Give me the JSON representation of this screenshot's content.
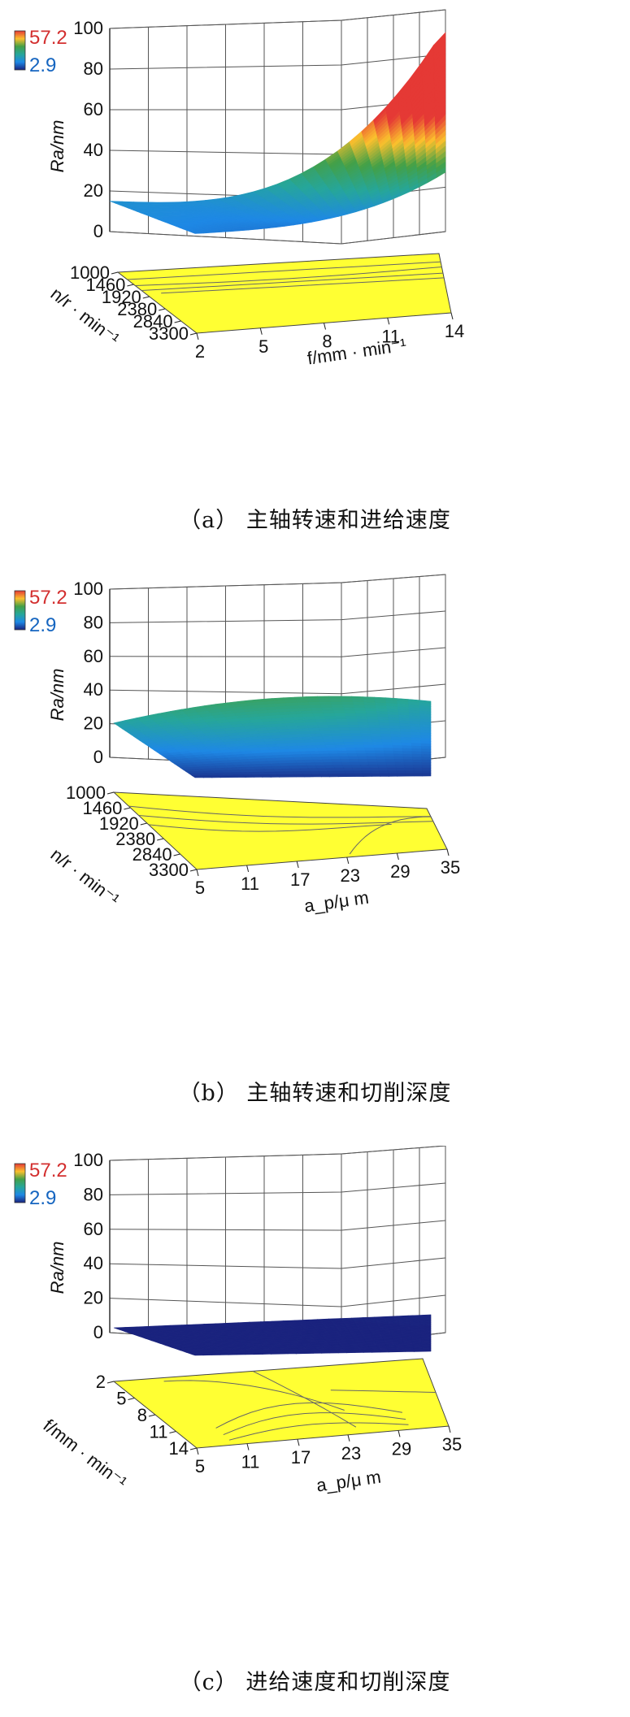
{
  "chart_data": [
    {
      "type": "surface3d",
      "panel_id": "a",
      "caption": "（a）  主轴转速和进给速度",
      "xlabel": "f/mm · min⁻¹",
      "ylabel": "n/r · min⁻¹",
      "zlabel": "Ra/nm",
      "x_ticks": [
        "2",
        "5",
        "8",
        "11",
        "14"
      ],
      "y_ticks": [
        "1000",
        "1460",
        "1920",
        "2380",
        "2840",
        "3300"
      ],
      "z_ticks": [
        "0",
        "20",
        "40",
        "60",
        "80",
        "100"
      ],
      "zlim": [
        0,
        100
      ],
      "colorbar": {
        "max": "57.2",
        "min": "2.9",
        "colors": [
          "#1a237e",
          "#1e88e5",
          "#26a69a",
          "#43a047",
          "#fbc02d",
          "#e53935"
        ]
      },
      "contour_base_color": "#ffff33"
    },
    {
      "type": "surface3d",
      "panel_id": "b",
      "caption": "（b）  主轴转速和切削深度",
      "xlabel": "a_p/μ m",
      "ylabel": "n/r · min⁻¹",
      "zlabel": "Ra/nm",
      "x_ticks": [
        "5",
        "11",
        "17",
        "23",
        "29",
        "35"
      ],
      "y_ticks": [
        "1000",
        "1460",
        "1920",
        "2380",
        "2840",
        "3300"
      ],
      "z_ticks": [
        "0",
        "20",
        "40",
        "60",
        "80",
        "100"
      ],
      "zlim": [
        0,
        100
      ],
      "colorbar": {
        "max": "57.2",
        "min": "2.9",
        "colors": [
          "#1a237e",
          "#1e88e5",
          "#26a69a",
          "#43a047",
          "#fbc02d",
          "#e53935"
        ]
      },
      "contour_base_color": "#ffff33"
    },
    {
      "type": "surface3d",
      "panel_id": "c",
      "caption": "（c）  进给速度和切削深度",
      "xlabel": "a_p/μ m",
      "ylabel": "f/mm · min⁻¹",
      "zlabel": "Ra/nm",
      "x_ticks": [
        "5",
        "11",
        "17",
        "23",
        "29",
        "35"
      ],
      "y_ticks": [
        "2",
        "5",
        "8",
        "11",
        "14"
      ],
      "z_ticks": [
        "0",
        "20",
        "40",
        "60",
        "80",
        "100"
      ],
      "zlim": [
        0,
        100
      ],
      "colorbar": {
        "max": "57.2",
        "min": "2.9",
        "colors": [
          "#1a237e",
          "#1e88e5",
          "#26a69a",
          "#43a047",
          "#fbc02d",
          "#e53935"
        ]
      },
      "contour_base_color": "#ffff33"
    }
  ]
}
